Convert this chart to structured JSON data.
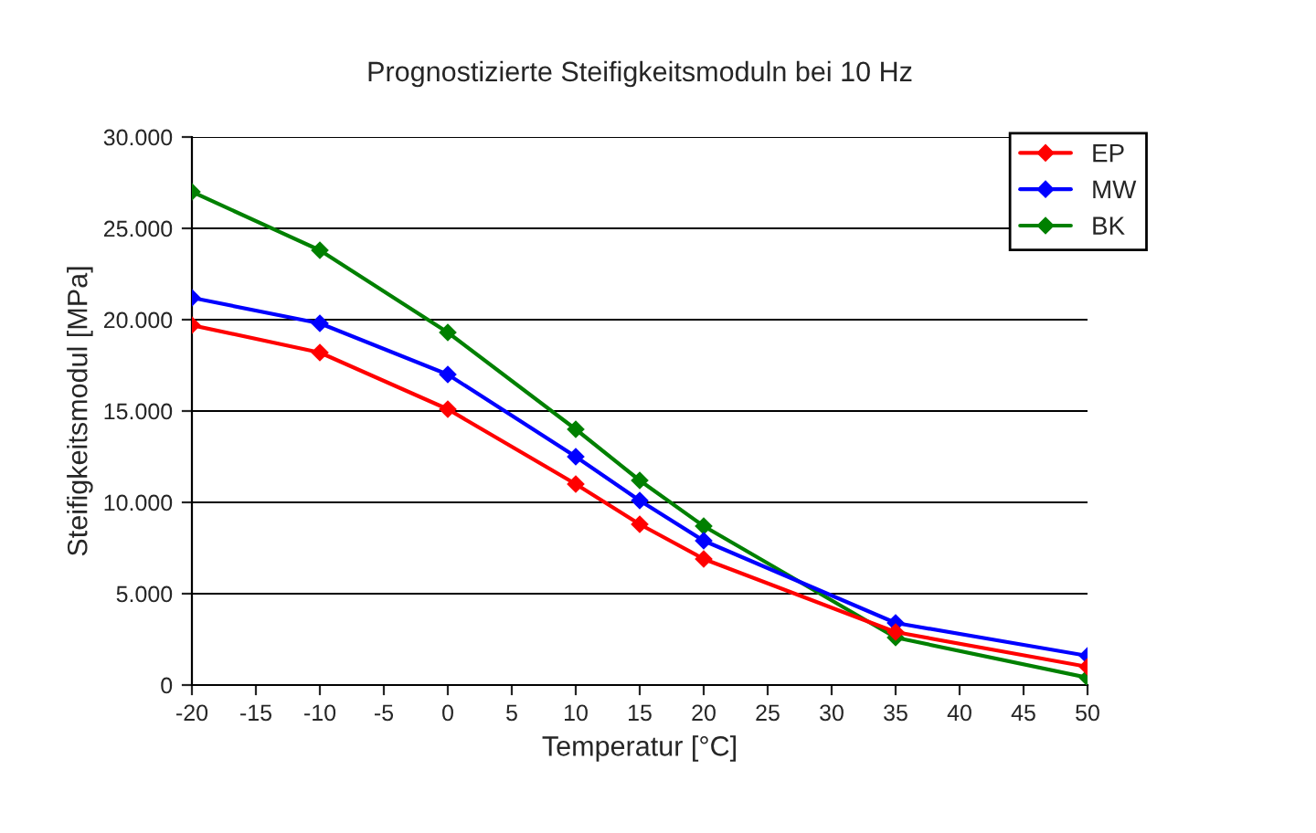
{
  "chart_data": {
    "type": "line",
    "title": "Prognostizierte Steifigkeitsmoduln bei 10 Hz",
    "xlabel": "Temperatur [°C]",
    "ylabel": "Steifigkeitsmodul [MPa]",
    "x": [
      -20,
      -10,
      0,
      10,
      15,
      20,
      35,
      50
    ],
    "series": [
      {
        "name": "EP",
        "color": "#ff0000",
        "values": [
          19700,
          18200,
          15100,
          11000,
          8800,
          6900,
          2900,
          1000
        ]
      },
      {
        "name": "MW",
        "color": "#0000ff",
        "values": [
          21200,
          19800,
          17000,
          12500,
          10100,
          7900,
          3400,
          1600
        ]
      },
      {
        "name": "BK",
        "color": "#008000",
        "values": [
          27000,
          23800,
          19300,
          14000,
          11200,
          8700,
          2600,
          400
        ]
      }
    ],
    "xlim": [
      -20,
      50
    ],
    "xticks": [
      -20,
      -15,
      -10,
      -5,
      0,
      5,
      10,
      15,
      20,
      25,
      30,
      35,
      40,
      45,
      50
    ],
    "ylim": [
      0,
      30000
    ],
    "yticks": [
      {
        "value": 0,
        "label": "0"
      },
      {
        "value": 5000,
        "label": "5.000"
      },
      {
        "value": 10000,
        "label": "10.000"
      },
      {
        "value": 15000,
        "label": "15.000"
      },
      {
        "value": 20000,
        "label": "20.000"
      },
      {
        "value": 25000,
        "label": "25.000"
      },
      {
        "value": 30000,
        "label": "30.000"
      }
    ],
    "grid": "y",
    "legend": "top right",
    "marker": "diamond",
    "line_style": "solid"
  }
}
